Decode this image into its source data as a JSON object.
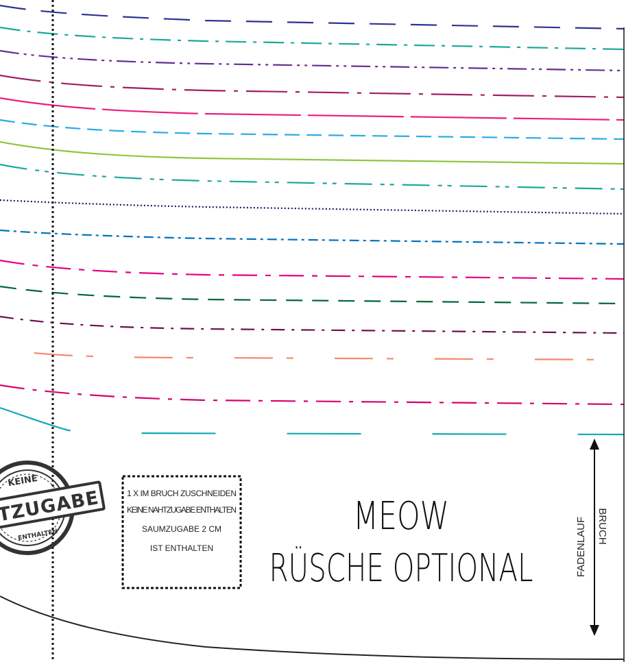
{
  "pattern": {
    "title": "MEOW",
    "subtitle": "RÜSCHE OPTIONAL",
    "instructions": [
      "1 X IM BRUCH ZUSCHNEIDEN",
      "KEINE NAHTZUGABE ENTHALTEN",
      "SAUMZUGABE 2 CM",
      "IST ENTHALTEN"
    ],
    "stamp": {
      "top": "KEINE",
      "middle": "NAHTZUGABE",
      "bottom": "ENTHALTEN"
    },
    "grainline": {
      "fadenlauf": "FADENLAUF",
      "bruch": "BRUCH"
    },
    "size_lines": [
      {
        "color": "#2e3192",
        "style": "long-dash"
      },
      {
        "color": "#1aa89a",
        "style": "dash-dot"
      },
      {
        "color": "#662d91",
        "style": "dash-dot-dot"
      },
      {
        "color": "#9e1f63",
        "style": "long-dot"
      },
      {
        "color": "#ec1c7a",
        "style": "long-gap"
      },
      {
        "color": "#29abe2",
        "style": "short-dash"
      },
      {
        "color": "#8cc63f",
        "style": "solid"
      },
      {
        "color": "#1aa89a",
        "style": "dash-dot-dot"
      },
      {
        "color": "#1b1464",
        "style": "dotted"
      },
      {
        "color": "#0071bc",
        "style": "dash-dot"
      },
      {
        "color": "#e6007e",
        "style": "dash-dot-long"
      },
      {
        "color": "#006837",
        "style": "dash"
      },
      {
        "color": "#6b0f4b",
        "style": "dash-dot"
      },
      {
        "color": "#f7876c",
        "style": "long-gap"
      },
      {
        "color": "#d6006e",
        "style": "dash-dot"
      },
      {
        "color": "#0fa9b0",
        "style": "long-gap"
      }
    ]
  }
}
